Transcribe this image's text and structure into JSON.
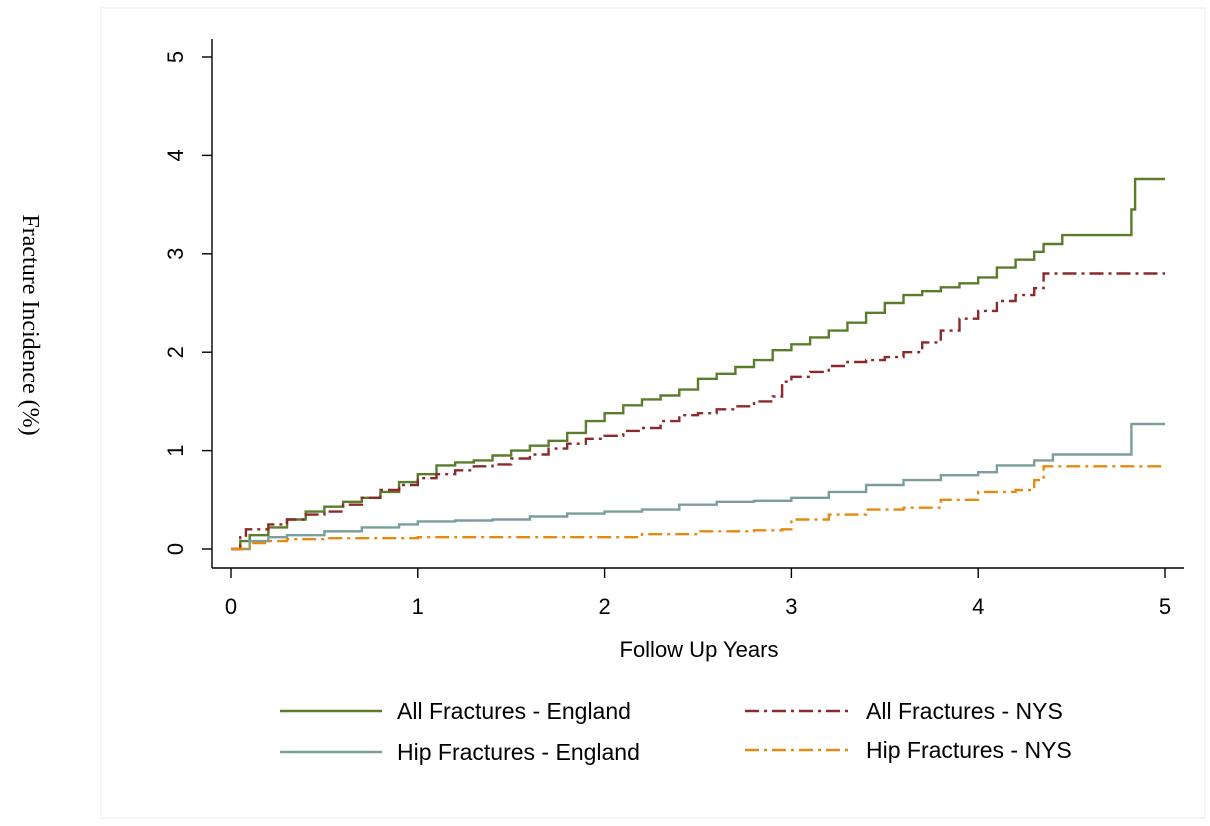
{
  "chart_data": {
    "type": "line",
    "title": "",
    "xlabel": "Follow Up Years",
    "ylabel": "Fracture Incidence (%)",
    "xlim": [
      0,
      5
    ],
    "ylim": [
      0,
      5
    ],
    "x_ticks": [
      "0",
      "1",
      "2",
      "3",
      "4",
      "5"
    ],
    "y_ticks": [
      "0",
      "1",
      "2",
      "3",
      "4",
      "5"
    ],
    "grid": false,
    "legend_position": "bottom",
    "series": [
      {
        "name": "All Fractures - England",
        "color": "#5a7d2c",
        "dash": "solid",
        "points": [
          [
            0.0,
            0.0
          ],
          [
            0.05,
            0.08
          ],
          [
            0.1,
            0.14
          ],
          [
            0.2,
            0.22
          ],
          [
            0.3,
            0.3
          ],
          [
            0.4,
            0.38
          ],
          [
            0.5,
            0.43
          ],
          [
            0.6,
            0.48
          ],
          [
            0.7,
            0.52
          ],
          [
            0.8,
            0.58
          ],
          [
            0.9,
            0.68
          ],
          [
            1.0,
            0.76
          ],
          [
            1.1,
            0.85
          ],
          [
            1.2,
            0.88
          ],
          [
            1.3,
            0.9
          ],
          [
            1.4,
            0.95
          ],
          [
            1.5,
            1.0
          ],
          [
            1.6,
            1.05
          ],
          [
            1.7,
            1.1
          ],
          [
            1.8,
            1.18
          ],
          [
            1.9,
            1.3
          ],
          [
            2.0,
            1.38
          ],
          [
            2.1,
            1.46
          ],
          [
            2.2,
            1.52
          ],
          [
            2.3,
            1.56
          ],
          [
            2.4,
            1.62
          ],
          [
            2.5,
            1.73
          ],
          [
            2.6,
            1.78
          ],
          [
            2.7,
            1.85
          ],
          [
            2.8,
            1.92
          ],
          [
            2.9,
            2.02
          ],
          [
            3.0,
            2.08
          ],
          [
            3.1,
            2.15
          ],
          [
            3.2,
            2.22
          ],
          [
            3.3,
            2.3
          ],
          [
            3.4,
            2.4
          ],
          [
            3.5,
            2.5
          ],
          [
            3.6,
            2.58
          ],
          [
            3.7,
            2.62
          ],
          [
            3.8,
            2.66
          ],
          [
            3.9,
            2.7
          ],
          [
            4.0,
            2.76
          ],
          [
            4.1,
            2.86
          ],
          [
            4.2,
            2.94
          ],
          [
            4.3,
            3.02
          ],
          [
            4.35,
            3.1
          ],
          [
            4.45,
            3.19
          ],
          [
            4.8,
            3.19
          ],
          [
            4.82,
            3.45
          ],
          [
            4.84,
            3.76
          ],
          [
            5.0,
            3.76
          ]
        ]
      },
      {
        "name": "All Fractures - NYS",
        "color": "#8b2a2a",
        "dash": "dashdot",
        "points": [
          [
            0.0,
            0.0
          ],
          [
            0.05,
            0.12
          ],
          [
            0.08,
            0.2
          ],
          [
            0.2,
            0.25
          ],
          [
            0.3,
            0.3
          ],
          [
            0.4,
            0.35
          ],
          [
            0.5,
            0.38
          ],
          [
            0.6,
            0.45
          ],
          [
            0.7,
            0.52
          ],
          [
            0.8,
            0.6
          ],
          [
            0.9,
            0.65
          ],
          [
            1.0,
            0.72
          ],
          [
            1.1,
            0.76
          ],
          [
            1.2,
            0.8
          ],
          [
            1.3,
            0.84
          ],
          [
            1.4,
            0.86
          ],
          [
            1.5,
            0.92
          ],
          [
            1.6,
            0.96
          ],
          [
            1.7,
            1.02
          ],
          [
            1.8,
            1.07
          ],
          [
            1.9,
            1.12
          ],
          [
            2.0,
            1.15
          ],
          [
            2.1,
            1.2
          ],
          [
            2.2,
            1.23
          ],
          [
            2.3,
            1.3
          ],
          [
            2.4,
            1.36
          ],
          [
            2.5,
            1.38
          ],
          [
            2.6,
            1.42
          ],
          [
            2.7,
            1.45
          ],
          [
            2.8,
            1.5
          ],
          [
            2.9,
            1.55
          ],
          [
            2.95,
            1.7
          ],
          [
            3.0,
            1.75
          ],
          [
            3.1,
            1.8
          ],
          [
            3.2,
            1.86
          ],
          [
            3.3,
            1.9
          ],
          [
            3.4,
            1.92
          ],
          [
            3.5,
            1.95
          ],
          [
            3.6,
            2.0
          ],
          [
            3.7,
            2.1
          ],
          [
            3.8,
            2.22
          ],
          [
            3.9,
            2.34
          ],
          [
            4.0,
            2.42
          ],
          [
            4.1,
            2.52
          ],
          [
            4.2,
            2.58
          ],
          [
            4.3,
            2.65
          ],
          [
            4.35,
            2.8
          ],
          [
            5.0,
            2.8
          ]
        ]
      },
      {
        "name": "Hip Fractures - England",
        "color": "#7a9e9a",
        "dash": "solid",
        "points": [
          [
            0.0,
            0.0
          ],
          [
            0.1,
            0.08
          ],
          [
            0.2,
            0.12
          ],
          [
            0.3,
            0.14
          ],
          [
            0.5,
            0.18
          ],
          [
            0.7,
            0.22
          ],
          [
            0.9,
            0.25
          ],
          [
            1.0,
            0.28
          ],
          [
            1.2,
            0.29
          ],
          [
            1.4,
            0.3
          ],
          [
            1.6,
            0.33
          ],
          [
            1.8,
            0.36
          ],
          [
            2.0,
            0.38
          ],
          [
            2.2,
            0.4
          ],
          [
            2.4,
            0.45
          ],
          [
            2.6,
            0.48
          ],
          [
            2.8,
            0.49
          ],
          [
            3.0,
            0.52
          ],
          [
            3.2,
            0.58
          ],
          [
            3.4,
            0.65
          ],
          [
            3.6,
            0.7
          ],
          [
            3.8,
            0.75
          ],
          [
            4.0,
            0.78
          ],
          [
            4.1,
            0.85
          ],
          [
            4.3,
            0.9
          ],
          [
            4.4,
            0.96
          ],
          [
            4.8,
            0.96
          ],
          [
            4.82,
            1.27
          ],
          [
            5.0,
            1.27
          ]
        ]
      },
      {
        "name": "Hip Fractures - NYS",
        "color": "#e58a10",
        "dash": "dashdot",
        "points": [
          [
            0.0,
            0.0
          ],
          [
            0.1,
            0.06
          ],
          [
            0.2,
            0.08
          ],
          [
            0.3,
            0.1
          ],
          [
            0.5,
            0.11
          ],
          [
            1.0,
            0.12
          ],
          [
            1.5,
            0.12
          ],
          [
            2.0,
            0.12
          ],
          [
            2.2,
            0.15
          ],
          [
            2.5,
            0.18
          ],
          [
            2.8,
            0.19
          ],
          [
            2.95,
            0.2
          ],
          [
            3.0,
            0.3
          ],
          [
            3.2,
            0.35
          ],
          [
            3.4,
            0.4
          ],
          [
            3.6,
            0.42
          ],
          [
            3.8,
            0.5
          ],
          [
            4.0,
            0.58
          ],
          [
            4.2,
            0.6
          ],
          [
            4.3,
            0.7
          ],
          [
            4.35,
            0.84
          ],
          [
            5.0,
            0.84
          ]
        ]
      }
    ]
  }
}
